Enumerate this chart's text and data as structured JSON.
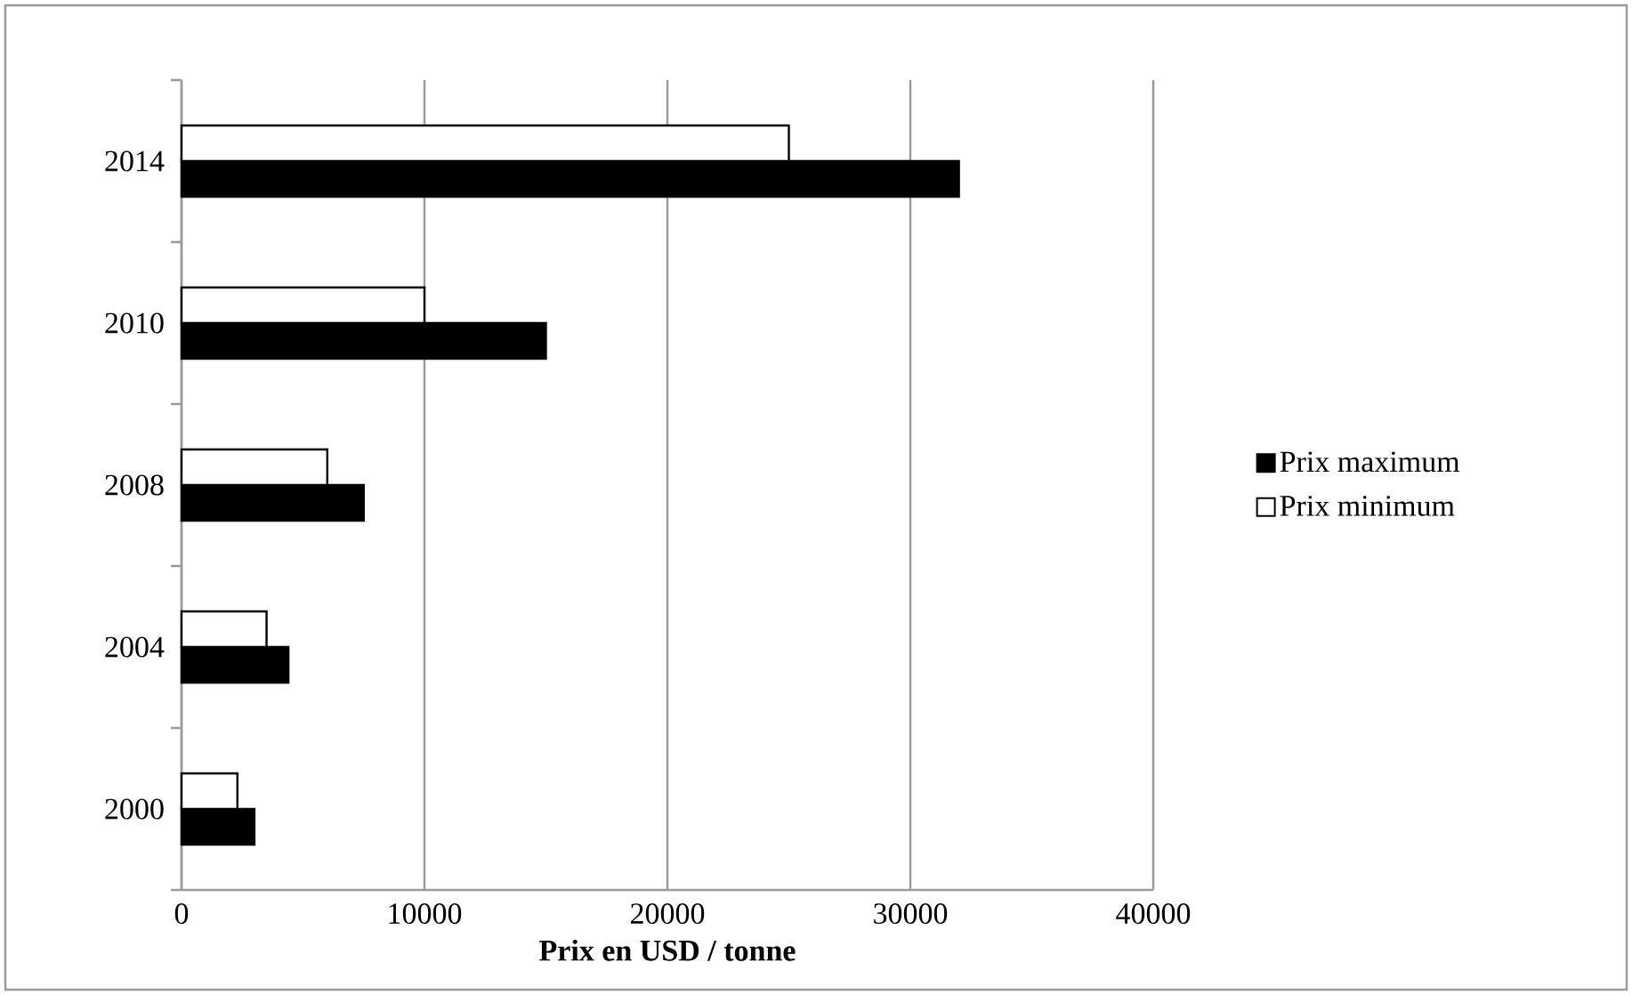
{
  "chart_data": {
    "type": "bar",
    "orientation": "horizontal",
    "xlabel": "Prix en USD / tonne",
    "categories": [
      "2014",
      "2010",
      "2008",
      "2004",
      "2000"
    ],
    "series": [
      {
        "name": "Prix maximum",
        "color": "#000000",
        "values": [
          32000,
          15000,
          7500,
          4400,
          3000
        ]
      },
      {
        "name": "Prix minimum",
        "color": "#ffffff",
        "values": [
          25000,
          10000,
          6000,
          3500,
          2300
        ]
      }
    ],
    "xlim": [
      0,
      40000
    ],
    "xticks": [
      0,
      10000,
      20000,
      30000,
      40000
    ],
    "grid": "x",
    "legend": "right"
  }
}
